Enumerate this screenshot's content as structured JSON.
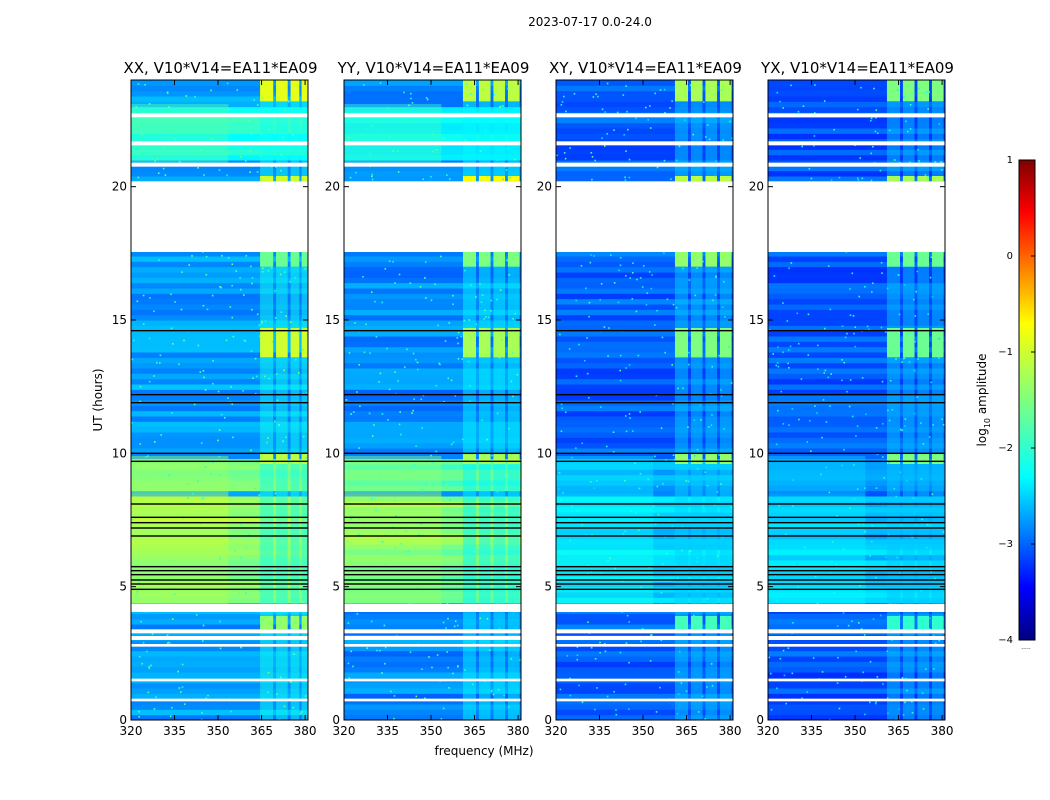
{
  "figure_title": "2023-07-17 0.0-24.0",
  "colors": {
    "jet": [
      "#00007f",
      "#0000ff",
      "#007fff",
      "#00ffff",
      "#7fff7f",
      "#ffff00",
      "#ff7f00",
      "#ff0000",
      "#7f0000"
    ],
    "gap": "#ffffff",
    "flag_line": "#000000"
  },
  "chart_data": {
    "type": "heatmap",
    "xlabel": "frequency (MHz)",
    "ylabel": "UT (hours)",
    "xlim": [
      320,
      381
    ],
    "ylim": [
      0,
      24
    ],
    "xticks": [
      320,
      335,
      350,
      365,
      380
    ],
    "yticks": [
      0,
      5,
      10,
      15,
      20
    ],
    "colorbar": {
      "label_prefix": "log",
      "label_sub": "10",
      "label_suffix": " amplitude",
      "range": [
        -4,
        1
      ],
      "ticks": [
        -4,
        -3,
        -2,
        -1,
        0,
        1
      ],
      "tick_labels": [
        "−4",
        "−3",
        "−2",
        "−1",
        "0",
        "1"
      ],
      "under_marker": "....."
    },
    "gaps_hours": [
      [
        17.55,
        20.2
      ],
      [
        4.05,
        4.35
      ],
      [
        3.0,
        3.15
      ],
      [
        3.25,
        3.4
      ],
      [
        2.75,
        2.85
      ],
      [
        22.6,
        22.75
      ],
      [
        21.55,
        21.7
      ],
      [
        20.75,
        20.9
      ],
      [
        0.7,
        0.8
      ],
      [
        1.45,
        1.55
      ]
    ],
    "flag_lines_hours": [
      8.1,
      7.6,
      7.4,
      7.2,
      6.9,
      5.75,
      5.6,
      5.45,
      5.25,
      5.1,
      4.9,
      10.0,
      11.9,
      12.2,
      14.6,
      9.7
    ],
    "panels": [
      {
        "title": "XX, V10*V14=EA11*EA09",
        "base_level": -2.6,
        "broadband_bands": [
          {
            "from": 4.3,
            "to": 6.4,
            "level": -1.5
          },
          {
            "from": 6.4,
            "to": 8.5,
            "level": -1.35
          },
          {
            "from": 8.5,
            "to": 9.9,
            "level": -1.6
          },
          {
            "from": 20.9,
            "to": 23.1,
            "level": -2.0
          }
        ],
        "rfi_channels_mhz": [
          [
            364.5,
            369
          ],
          [
            370,
            374
          ],
          [
            375,
            378
          ],
          [
            378.8,
            381
          ]
        ],
        "rfi_bursts_hours": [
          [
            13.6,
            14.7,
            -1.1
          ],
          [
            9.6,
            10.0,
            -1.2
          ],
          [
            3.4,
            3.9,
            -1.4
          ],
          [
            20.2,
            20.4,
            -1.1
          ],
          [
            23.2,
            24,
            -1.0
          ],
          [
            17.0,
            17.55,
            -1.6
          ]
        ]
      },
      {
        "title": "YY, V10*V14=EA11*EA09",
        "base_level": -2.7,
        "broadband_bands": [
          {
            "from": 4.3,
            "to": 6.4,
            "level": -1.6
          },
          {
            "from": 6.4,
            "to": 8.5,
            "level": -1.45
          },
          {
            "from": 8.5,
            "to": 9.9,
            "level": -1.7
          },
          {
            "from": 20.9,
            "to": 23.1,
            "level": -2.1
          }
        ],
        "rfi_channels_mhz": [
          [
            361,
            365.5
          ],
          [
            366.5,
            370.5
          ],
          [
            371.5,
            375.5
          ],
          [
            376.5,
            380.5
          ]
        ],
        "rfi_bursts_hours": [
          [
            13.6,
            14.7,
            -1.3
          ],
          [
            9.6,
            10.0,
            -1.3
          ],
          [
            20.2,
            20.4,
            -0.9
          ],
          [
            23.2,
            24,
            -1.2
          ],
          [
            17.0,
            17.55,
            -1.5
          ]
        ]
      },
      {
        "title": "XY, V10*V14=EA11*EA09",
        "base_level": -2.9,
        "broadband_bands": [
          {
            "from": 4.3,
            "to": 6.4,
            "level": -2.3
          },
          {
            "from": 6.4,
            "to": 8.5,
            "level": -2.35
          },
          {
            "from": 8.5,
            "to": 9.9,
            "level": -2.5
          }
        ],
        "rfi_channels_mhz": [
          [
            361,
            365.5
          ],
          [
            366.5,
            370.5
          ],
          [
            371.5,
            375.5
          ],
          [
            376.5,
            380.5
          ]
        ],
        "rfi_bursts_hours": [
          [
            13.6,
            14.7,
            -1.5
          ],
          [
            9.6,
            10.0,
            -1.4
          ],
          [
            3.4,
            3.9,
            -1.8
          ],
          [
            20.2,
            20.4,
            -1.2
          ],
          [
            23.2,
            24,
            -1.3
          ],
          [
            17.0,
            17.55,
            -1.4
          ]
        ]
      },
      {
        "title": "YX, V10*V14=EA11*EA09",
        "base_level": -2.95,
        "broadband_bands": [
          {
            "from": 4.3,
            "to": 6.4,
            "level": -2.4
          },
          {
            "from": 6.4,
            "to": 8.5,
            "level": -2.45
          },
          {
            "from": 8.5,
            "to": 9.9,
            "level": -2.6
          }
        ],
        "rfi_channels_mhz": [
          [
            361,
            365.5
          ],
          [
            366.5,
            370.5
          ],
          [
            371.5,
            375.5
          ],
          [
            376.5,
            380.5
          ]
        ],
        "rfi_bursts_hours": [
          [
            13.6,
            14.7,
            -1.6
          ],
          [
            9.6,
            10.0,
            -1.5
          ],
          [
            3.4,
            3.9,
            -1.9
          ],
          [
            20.2,
            20.4,
            -1.3
          ],
          [
            23.2,
            24,
            -1.5
          ],
          [
            17.0,
            17.55,
            -1.6
          ]
        ]
      }
    ]
  }
}
